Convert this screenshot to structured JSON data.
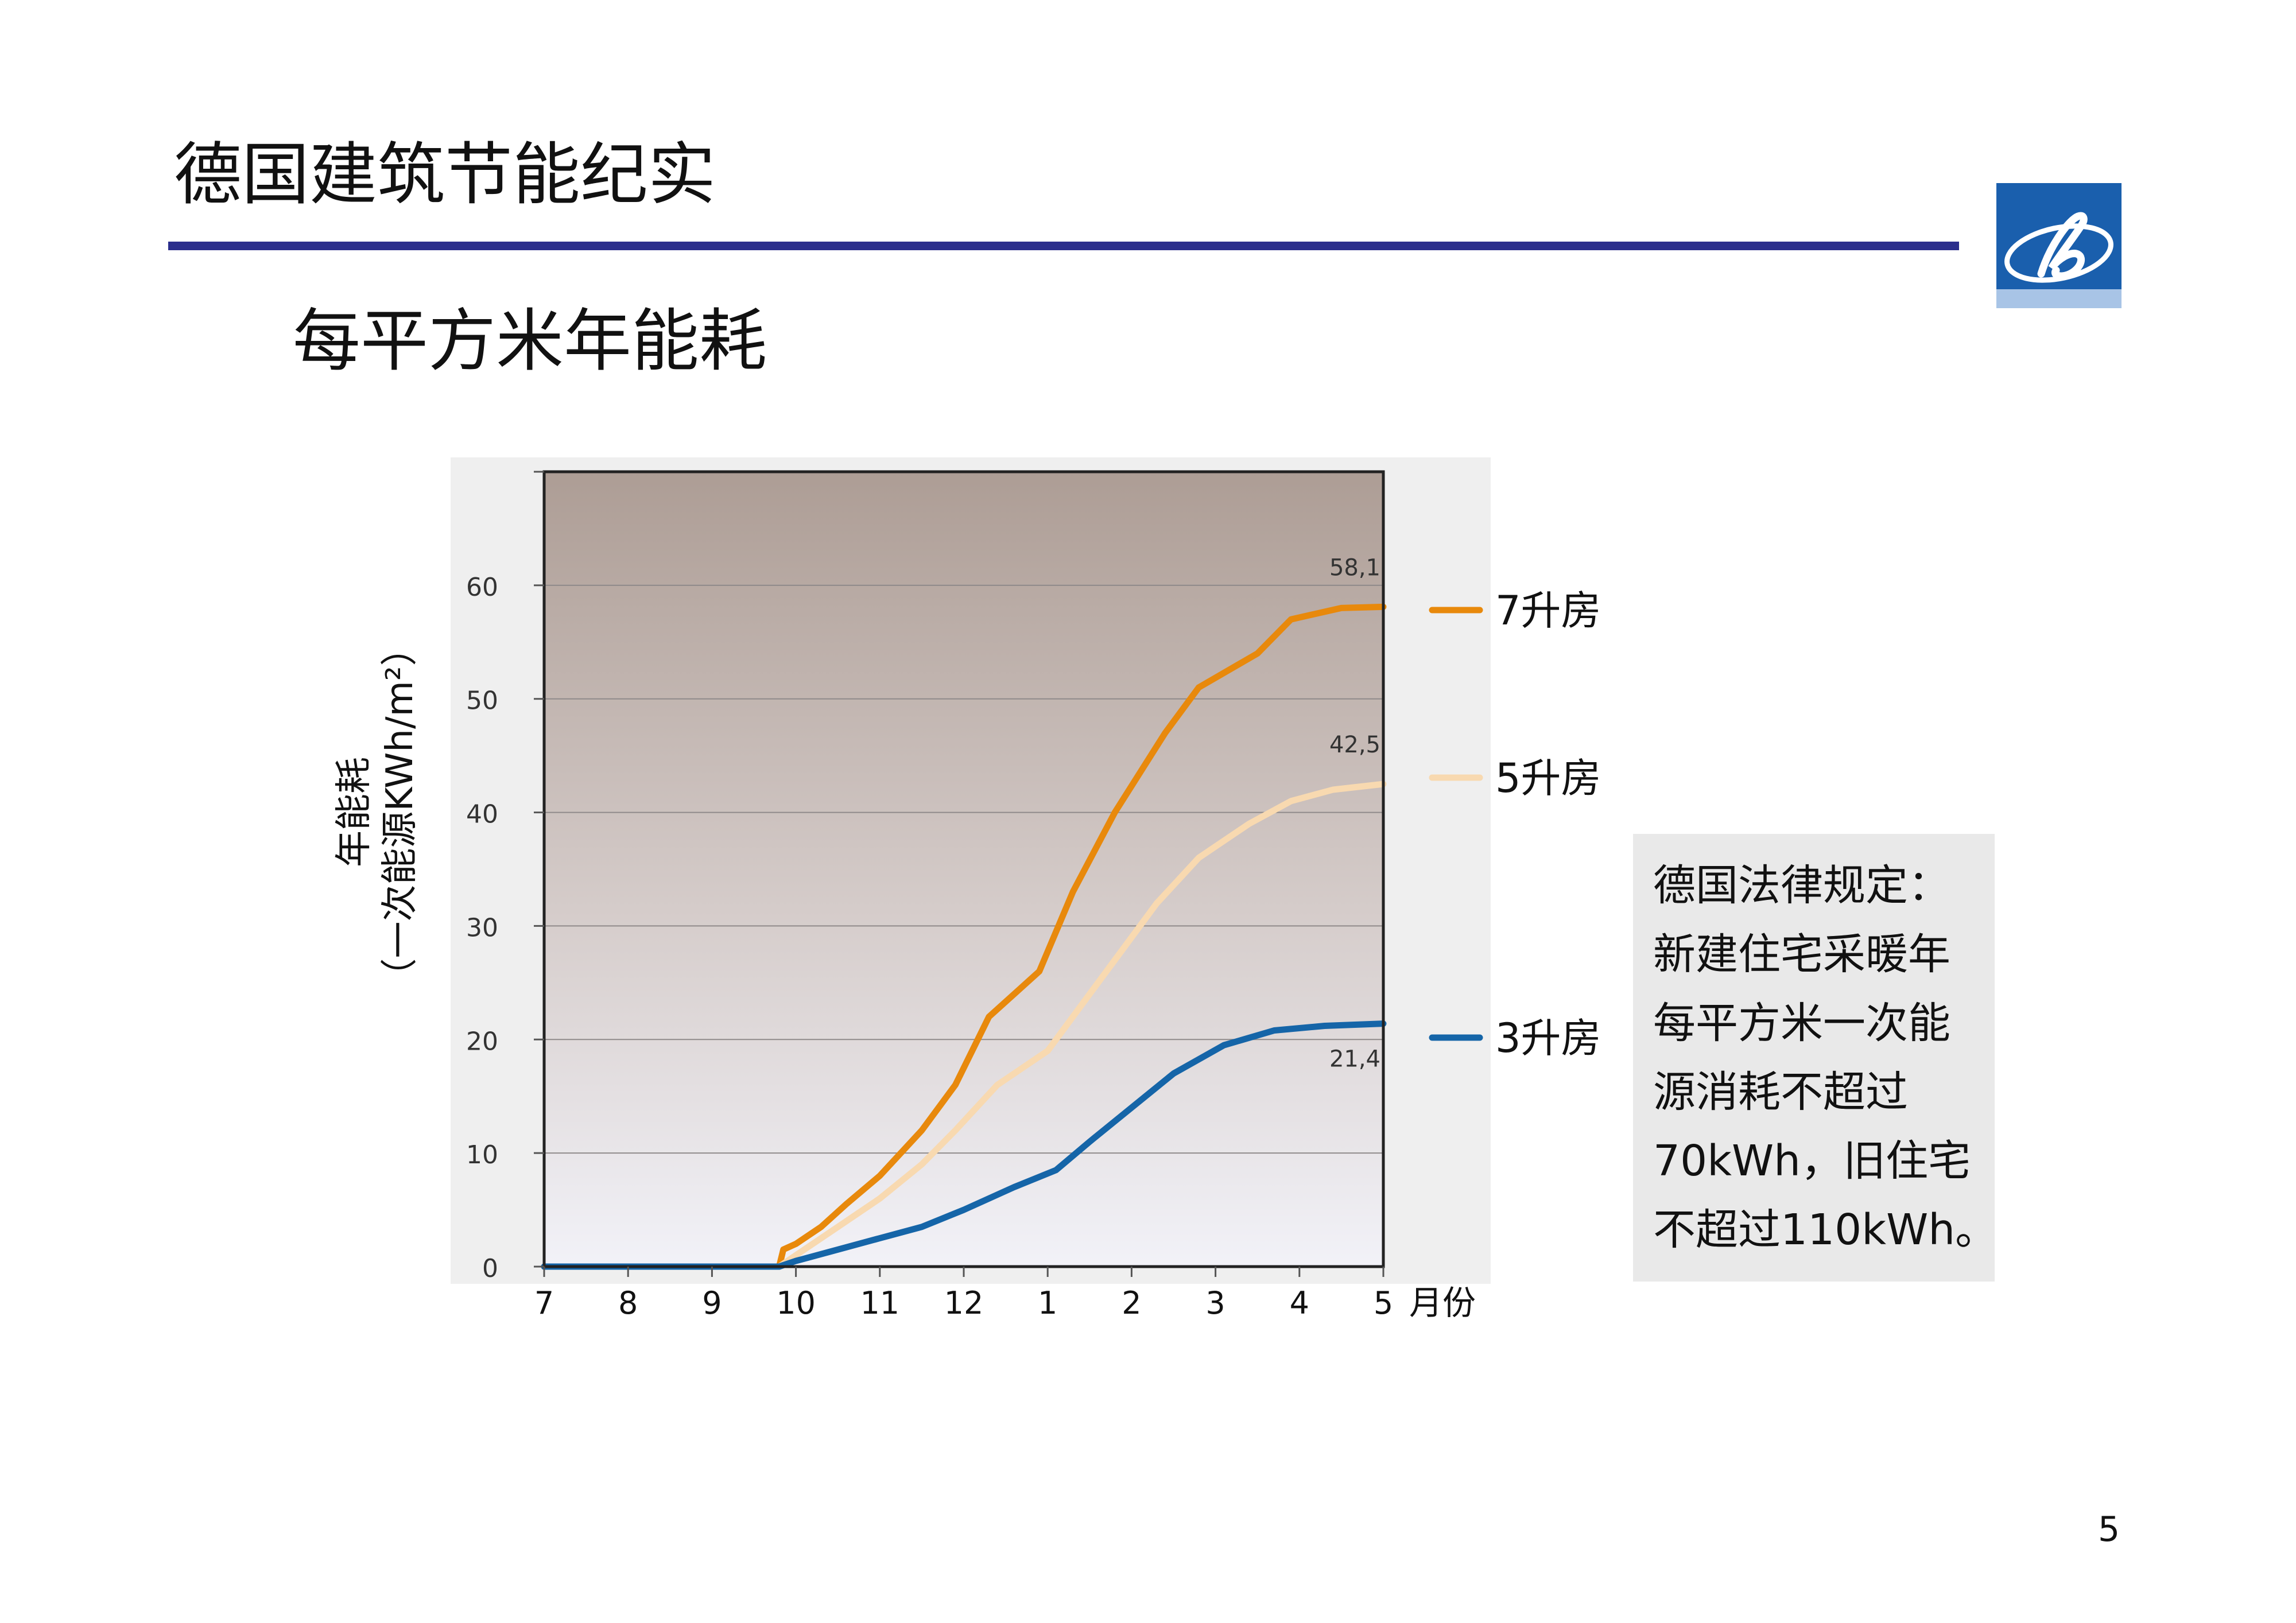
{
  "slide": {
    "title": "德国建筑节能纪实",
    "subtitle": "每平方米年能耗",
    "page_number": "5"
  },
  "colors": {
    "title_rule": "#2b2e8c",
    "logo_blue": "#1a5fad",
    "series_7": "#e8890c",
    "series_5": "#f8d9b0",
    "series_3": "#1565a8"
  },
  "note": {
    "lines": [
      "德国法律规定：",
      "新建住宅采暖年",
      "每平方米一次能",
      "源消耗不超过",
      "70kWh，旧住宅",
      "不超过110kWh。"
    ]
  },
  "chart_data": {
    "type": "line",
    "ylabel_line1": "年能耗",
    "ylabel_line2": "（一次能源KWh/m²）",
    "xlabel": "月份",
    "y_ticks": [
      "0",
      "10",
      "20",
      "30",
      "40",
      "50",
      "60"
    ],
    "x_ticks": [
      "7",
      "8",
      "9",
      "10",
      "11",
      "12",
      "1",
      "2",
      "3",
      "4",
      "5"
    ],
    "ylim": [
      0,
      70
    ],
    "xlim": [
      0,
      10
    ],
    "grid": true,
    "legend_position": "right",
    "series": [
      {
        "name": "7升房",
        "end_label": "58,1",
        "color": "#e8890c",
        "points": [
          [
            0,
            0
          ],
          [
            2.8,
            0
          ],
          [
            2.85,
            1.5
          ],
          [
            3,
            2
          ],
          [
            3.3,
            3.5
          ],
          [
            3.6,
            5.5
          ],
          [
            4,
            8
          ],
          [
            4.5,
            12
          ],
          [
            4.9,
            16
          ],
          [
            5.3,
            22
          ],
          [
            5.9,
            26
          ],
          [
            6.3,
            33
          ],
          [
            6.8,
            40
          ],
          [
            7.4,
            47
          ],
          [
            7.8,
            51
          ],
          [
            8.5,
            54
          ],
          [
            8.9,
            57
          ],
          [
            9.5,
            58
          ],
          [
            10,
            58.1
          ]
        ]
      },
      {
        "name": "5升房",
        "end_label": "42,5",
        "color": "#f8d9b0",
        "points": [
          [
            0,
            0
          ],
          [
            2.8,
            0
          ],
          [
            3,
            1
          ],
          [
            3.5,
            3.5
          ],
          [
            4,
            6
          ],
          [
            4.5,
            9
          ],
          [
            4.9,
            12
          ],
          [
            5.4,
            16
          ],
          [
            6,
            19
          ],
          [
            6.3,
            22
          ],
          [
            6.8,
            27
          ],
          [
            7.3,
            32
          ],
          [
            7.8,
            36
          ],
          [
            8.4,
            39
          ],
          [
            8.9,
            41
          ],
          [
            9.4,
            42
          ],
          [
            10,
            42.5
          ]
        ]
      },
      {
        "name": "3升房",
        "end_label": "21,4",
        "color": "#1565a8",
        "points": [
          [
            0,
            0
          ],
          [
            2.8,
            0
          ],
          [
            3,
            0.5
          ],
          [
            3.5,
            1.5
          ],
          [
            4,
            2.5
          ],
          [
            4.5,
            3.5
          ],
          [
            5,
            5
          ],
          [
            5.6,
            7
          ],
          [
            6.1,
            8.5
          ],
          [
            6.5,
            11
          ],
          [
            7,
            14
          ],
          [
            7.5,
            17
          ],
          [
            8.1,
            19.5
          ],
          [
            8.7,
            20.8
          ],
          [
            9.3,
            21.2
          ],
          [
            10,
            21.4
          ]
        ]
      }
    ]
  }
}
